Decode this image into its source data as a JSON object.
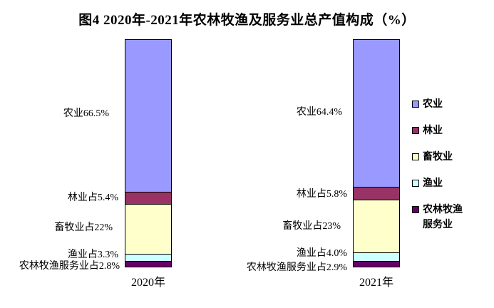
{
  "title": "图4  2020年-2021年农林牧渔及服务业总产值构成（%）",
  "chart_data": {
    "type": "bar",
    "subtype": "stacked-100-percent-column",
    "title": "图4  2020年-2021年农林牧渔及服务业总产值构成（%）",
    "unit": "%",
    "categories": [
      "2020年",
      "2021年"
    ],
    "series": [
      {
        "name": "农业",
        "color": "#9999FF",
        "values": [
          66.5,
          64.4
        ]
      },
      {
        "name": "林业",
        "color": "#993366",
        "values": [
          5.4,
          5.8
        ]
      },
      {
        "name": "畜牧业",
        "color": "#FFFFCC",
        "values": [
          22,
          23
        ]
      },
      {
        "name": "渔业",
        "color": "#CCFFFF",
        "values": [
          3.3,
          4.0
        ]
      },
      {
        "name": "农林牧渔服务业",
        "color": "#660066",
        "values": [
          2.8,
          2.9
        ]
      }
    ],
    "data_labels": {
      "2020": [
        "农业66.5%",
        "林业占5.4%",
        "畜牧业占22%",
        "渔业占3.3%",
        "农林牧渔服务业占2.8%"
      ],
      "2021": [
        "农业64.4%",
        "林业占5.8%",
        "畜牧业占23%",
        "渔业占4.0%",
        "农林牧渔服务业占2.9%"
      ]
    },
    "legend": {
      "position": "right",
      "entries": [
        "农业",
        "林业",
        "畜牧业",
        "渔业",
        "农林牧渔服务业"
      ]
    },
    "axes": {
      "visible": false,
      "gridlines": false
    }
  }
}
